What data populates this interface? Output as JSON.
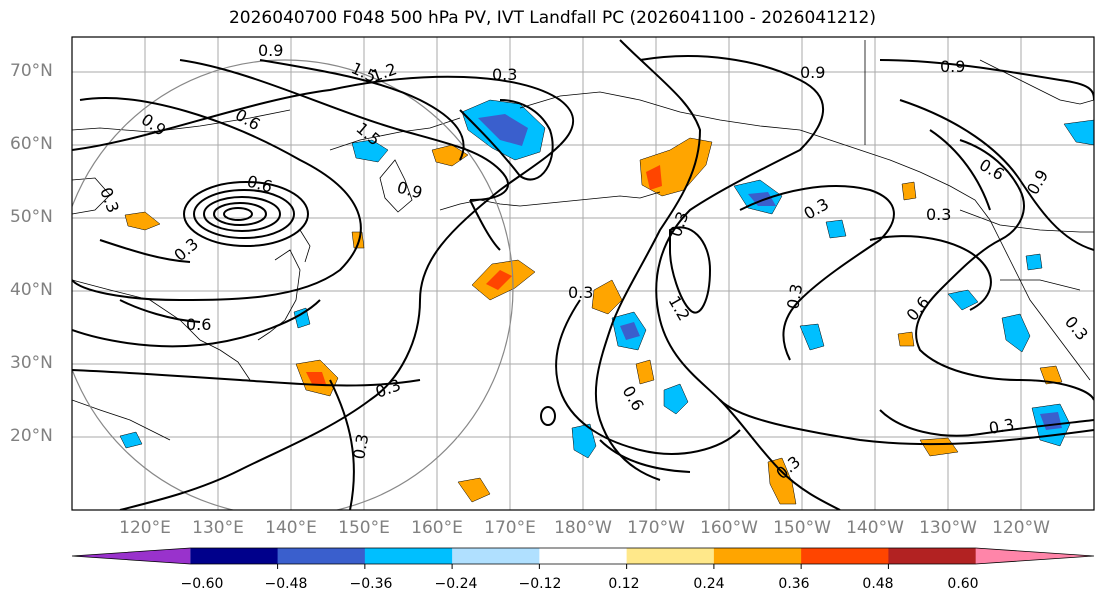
{
  "title": "2026040700 F048 500 hPa PV, IVT Landfall PC (2026041100 - 2026041212)",
  "lat_labels": [
    "70°N",
    "60°N",
    "50°N",
    "40°N",
    "30°N",
    "20°N"
  ],
  "lon_labels": [
    "120°E",
    "130°E",
    "140°E",
    "150°E",
    "160°E",
    "170°E",
    "180°W",
    "170°W",
    "160°W",
    "150°W",
    "140°W",
    "130°W",
    "120°W"
  ],
  "contour_labels": [
    "0.9",
    "1.5",
    "1.2",
    "0.6",
    "0.9",
    "0.3",
    "1.5",
    "0.3",
    "0.6",
    "0.3",
    "0.3",
    "0.6",
    "0.9",
    "0.3",
    "0.3",
    "1.2",
    "0.3",
    "0.6",
    "0.3",
    "0.9",
    "0.3",
    "0.6",
    "0.3",
    "0.3",
    "0.3",
    "0.9",
    "0.3",
    "0.6",
    "0.9"
  ],
  "colorbar": {
    "ticks": [
      "−0.60",
      "−0.48",
      "−0.36",
      "−0.24",
      "−0.12",
      "0.12",
      "0.24",
      "0.36",
      "0.48",
      "0.60"
    ],
    "colors": [
      "#9932cc",
      "#00008b",
      "#3a5fcd",
      "#00bfff",
      "#b0e0ff",
      "#ffffff",
      "#ffe88a",
      "#ffa500",
      "#ff4500",
      "#b22222",
      "#ff85a9"
    ]
  }
}
